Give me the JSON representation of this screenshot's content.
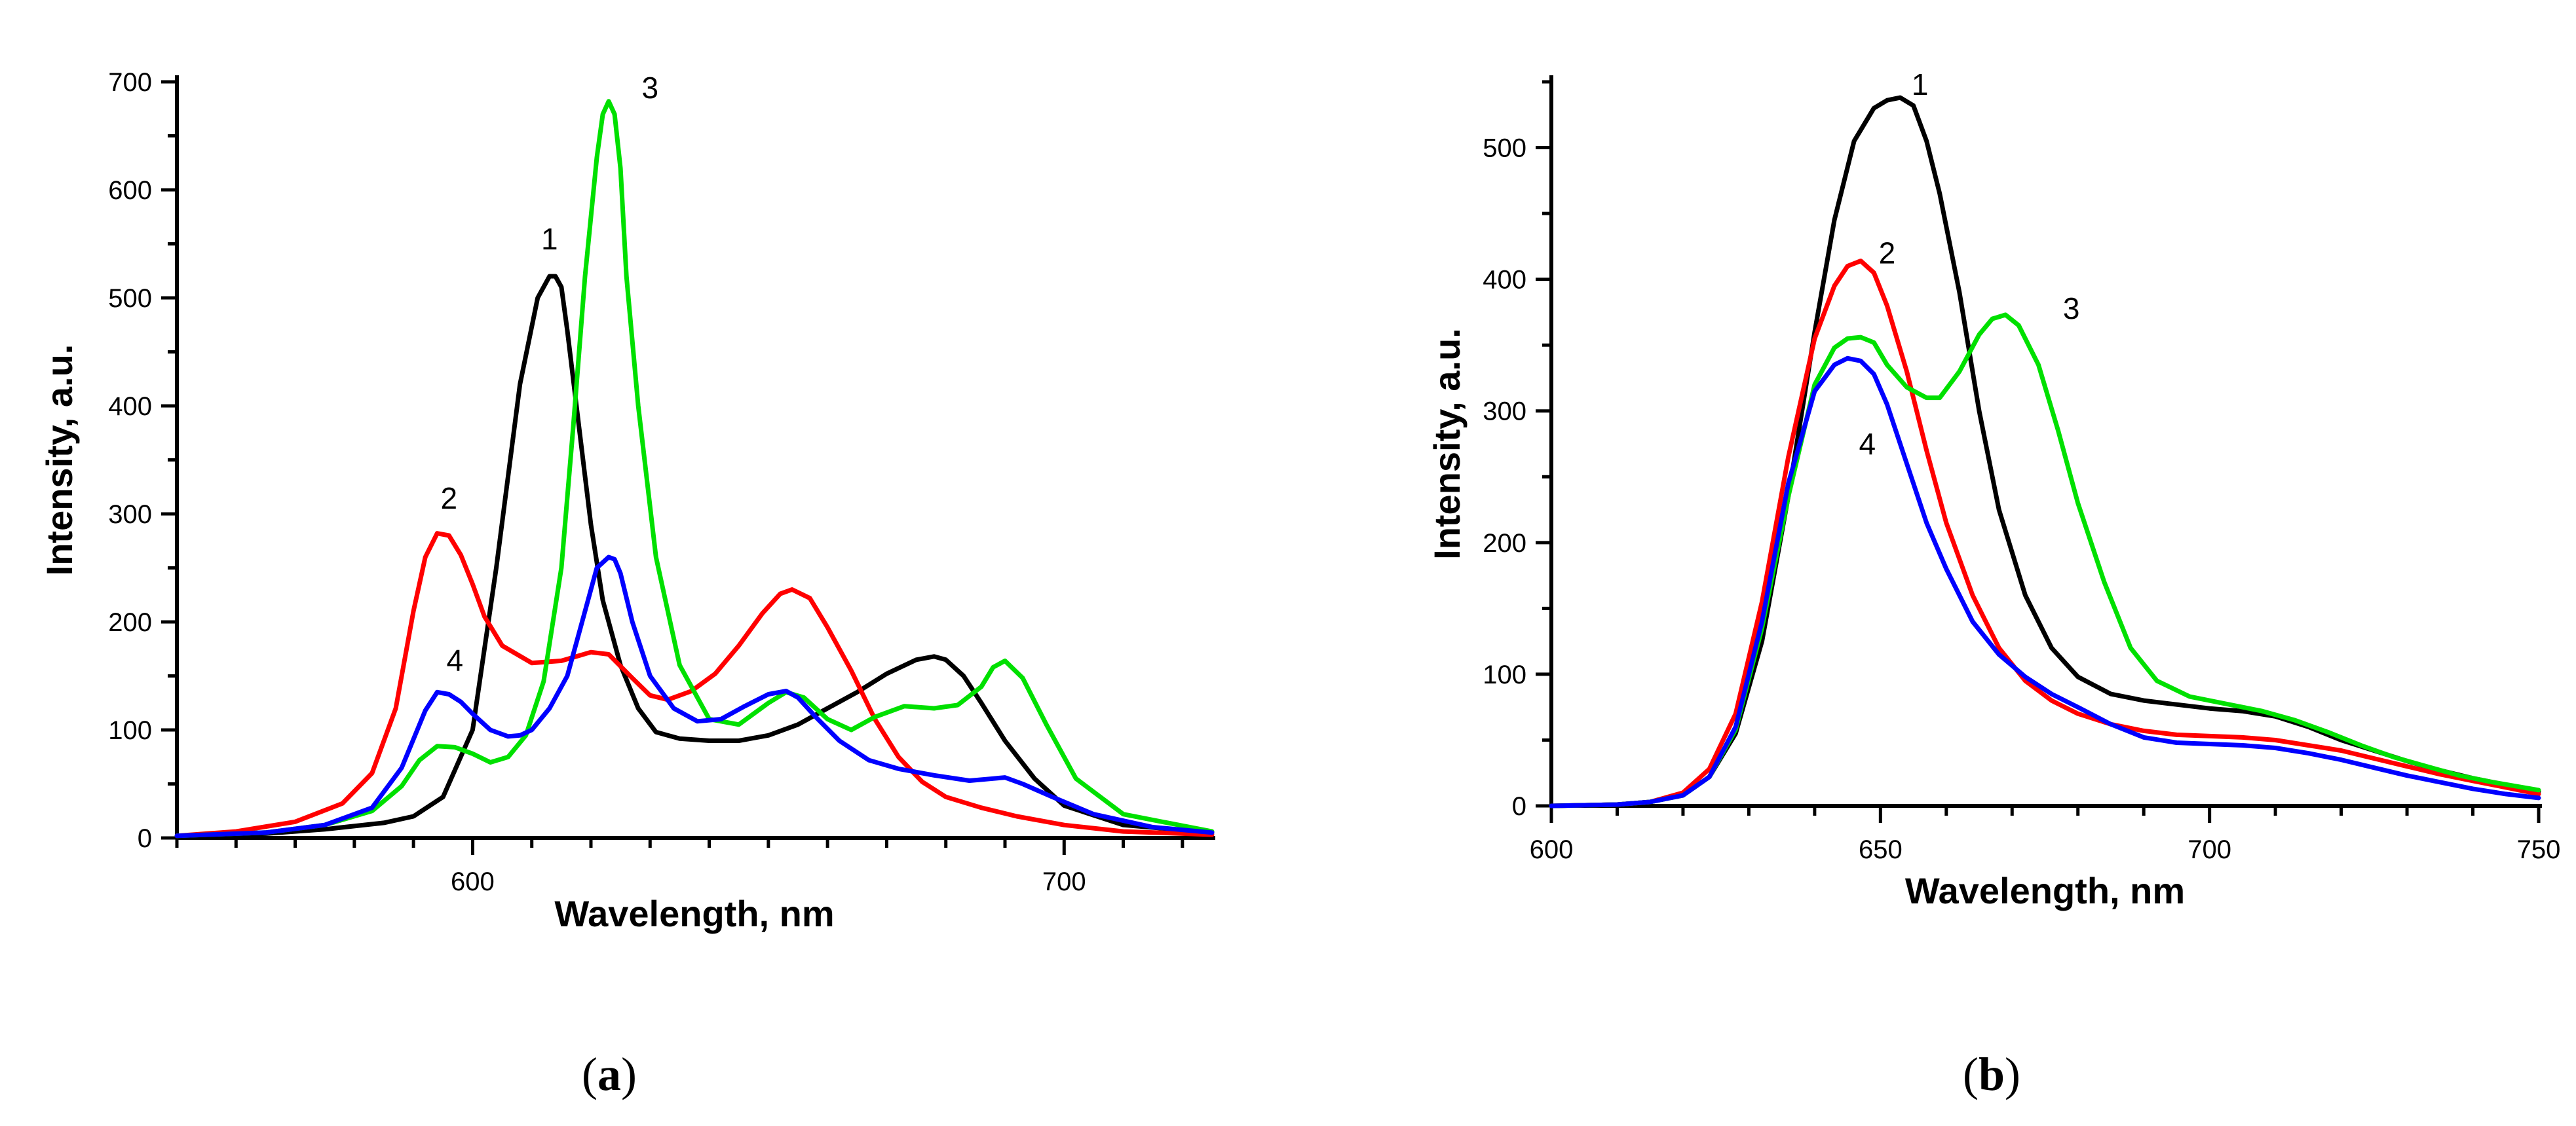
{
  "chart_data": [
    {
      "type": "line",
      "panel_label": "a",
      "xlabel": "Wavelength, nm",
      "ylabel": "Intensity, a.u.",
      "xlim": [
        550,
        725
      ],
      "ylim": [
        0,
        700
      ],
      "x_ticks": [
        600,
        700
      ],
      "y_ticks": [
        0,
        100,
        200,
        300,
        400,
        500,
        600,
        700
      ],
      "series": [
        {
          "name": "1",
          "color": "#000000",
          "x": [
            550,
            565,
            575,
            585,
            590,
            595,
            600,
            604,
            608,
            611,
            613,
            614,
            615,
            616,
            618,
            620,
            622,
            625,
            628,
            631,
            635,
            640,
            645,
            650,
            655,
            660,
            665,
            670,
            675,
            678,
            680,
            683,
            686,
            690,
            695,
            700,
            710,
            725
          ],
          "y": [
            2,
            4,
            8,
            14,
            20,
            38,
            100,
            250,
            420,
            500,
            520,
            520,
            510,
            470,
            380,
            290,
            220,
            160,
            120,
            98,
            92,
            90,
            90,
            95,
            105,
            120,
            135,
            152,
            165,
            168,
            165,
            150,
            125,
            90,
            55,
            30,
            12,
            5
          ]
        },
        {
          "name": "2",
          "color": "#ff0000",
          "x": [
            550,
            560,
            570,
            578,
            583,
            587,
            590,
            592,
            594,
            596,
            598,
            600,
            602,
            605,
            610,
            615,
            620,
            623,
            627,
            630,
            633,
            637,
            641,
            645,
            649,
            652,
            654,
            657,
            660,
            664,
            668,
            672,
            676,
            680,
            686,
            692,
            700,
            710,
            725
          ],
          "y": [
            2,
            6,
            15,
            32,
            60,
            120,
            210,
            260,
            282,
            280,
            262,
            235,
            205,
            178,
            162,
            164,
            172,
            170,
            148,
            132,
            128,
            136,
            152,
            178,
            208,
            226,
            230,
            222,
            195,
            155,
            110,
            75,
            52,
            38,
            28,
            20,
            12,
            6,
            3
          ]
        },
        {
          "name": "3",
          "color": "#00e000",
          "x": [
            550,
            565,
            575,
            583,
            588,
            591,
            594,
            597,
            600,
            603,
            606,
            609,
            612,
            615,
            617,
            619,
            621,
            622,
            623,
            624,
            625,
            626,
            628,
            631,
            635,
            640,
            645,
            650,
            653,
            656,
            660,
            664,
            668,
            673,
            678,
            682,
            686,
            688,
            690,
            693,
            697,
            702,
            710,
            725
          ],
          "y": [
            2,
            5,
            12,
            25,
            48,
            72,
            85,
            84,
            78,
            70,
            75,
            95,
            145,
            250,
            380,
            520,
            630,
            670,
            682,
            670,
            620,
            520,
            400,
            260,
            160,
            110,
            105,
            125,
            135,
            130,
            110,
            100,
            112,
            122,
            120,
            123,
            140,
            158,
            164,
            148,
            105,
            55,
            22,
            6
          ]
        },
        {
          "name": "4",
          "color": "#0000ff",
          "x": [
            550,
            565,
            575,
            583,
            588,
            592,
            594,
            596,
            598,
            600,
            603,
            606,
            608,
            610,
            613,
            616,
            619,
            621,
            623,
            624,
            625,
            627,
            630,
            634,
            638,
            642,
            646,
            650,
            653,
            655,
            658,
            662,
            667,
            672,
            678,
            684,
            688,
            690,
            693,
            698,
            705,
            715,
            725
          ],
          "y": [
            2,
            5,
            12,
            28,
            65,
            118,
            135,
            133,
            126,
            115,
            100,
            94,
            95,
            100,
            120,
            150,
            210,
            250,
            260,
            258,
            245,
            200,
            150,
            120,
            108,
            110,
            122,
            133,
            136,
            130,
            112,
            90,
            72,
            64,
            58,
            53,
            55,
            56,
            50,
            38,
            22,
            10,
            5
          ]
        }
      ],
      "curve_labels": [
        {
          "text": "1",
          "x": 613,
          "y": 545
        },
        {
          "text": "2",
          "x": 596,
          "y": 305
        },
        {
          "text": "3",
          "x": 630,
          "y": 685
        },
        {
          "text": "4",
          "x": 597,
          "y": 155
        }
      ]
    },
    {
      "type": "line",
      "panel_label": "b",
      "xlabel": "Wavelength, nm",
      "ylabel": "Intensity, a.u.",
      "xlim": [
        600,
        750
      ],
      "ylim": [
        0,
        550
      ],
      "x_ticks": [
        600,
        650,
        700,
        750
      ],
      "y_ticks": [
        0,
        100,
        200,
        300,
        400,
        500
      ],
      "series": [
        {
          "name": "1",
          "color": "#000000",
          "x": [
            600,
            610,
            615,
            620,
            624,
            628,
            632,
            636,
            640,
            643,
            646,
            649,
            651,
            653,
            655,
            657,
            659,
            662,
            665,
            668,
            672,
            676,
            680,
            685,
            690,
            695,
            700,
            705,
            710,
            715,
            720,
            725,
            730,
            735,
            740,
            745,
            750
          ],
          "y": [
            0,
            1,
            3,
            8,
            22,
            55,
            125,
            235,
            360,
            445,
            505,
            530,
            536,
            538,
            532,
            505,
            465,
            390,
            300,
            225,
            160,
            120,
            98,
            85,
            80,
            77,
            74,
            72,
            68,
            60,
            50,
            42,
            34,
            27,
            21,
            16,
            11
          ]
        },
        {
          "name": "2",
          "color": "#ff0000",
          "x": [
            600,
            610,
            615,
            620,
            624,
            628,
            632,
            636,
            640,
            643,
            645,
            647,
            649,
            651,
            654,
            657,
            660,
            664,
            668,
            672,
            676,
            680,
            685,
            690,
            695,
            700,
            705,
            710,
            715,
            720,
            725,
            730,
            735,
            740,
            745,
            750
          ],
          "y": [
            0,
            1,
            3,
            10,
            28,
            70,
            155,
            265,
            355,
            395,
            410,
            414,
            405,
            380,
            330,
            270,
            215,
            160,
            120,
            95,
            80,
            70,
            62,
            57,
            54,
            53,
            52,
            50,
            46,
            42,
            36,
            30,
            24,
            19,
            14,
            9
          ]
        },
        {
          "name": "3",
          "color": "#00e000",
          "x": [
            600,
            610,
            615,
            620,
            624,
            628,
            632,
            636,
            640,
            643,
            645,
            647,
            649,
            651,
            654,
            657,
            659,
            662,
            665,
            667,
            669,
            671,
            674,
            677,
            680,
            684,
            688,
            692,
            697,
            703,
            708,
            713,
            718,
            723,
            728,
            733,
            738,
            743,
            750
          ],
          "y": [
            0,
            1,
            3,
            8,
            22,
            58,
            135,
            235,
            320,
            348,
            355,
            356,
            352,
            335,
            318,
            310,
            310,
            330,
            358,
            370,
            373,
            365,
            335,
            285,
            230,
            170,
            120,
            95,
            83,
            77,
            72,
            65,
            56,
            46,
            37,
            30,
            23,
            18,
            12
          ]
        },
        {
          "name": "4",
          "color": "#0000ff",
          "x": [
            600,
            610,
            615,
            620,
            624,
            628,
            632,
            636,
            640,
            643,
            645,
            647,
            649,
            651,
            654,
            657,
            660,
            664,
            668,
            672,
            676,
            680,
            685,
            690,
            695,
            700,
            705,
            710,
            715,
            720,
            725,
            730,
            735,
            740,
            745,
            750
          ],
          "y": [
            0,
            1,
            3,
            8,
            22,
            60,
            140,
            245,
            315,
            335,
            340,
            338,
            328,
            305,
            260,
            215,
            180,
            140,
            115,
            98,
            85,
            75,
            62,
            52,
            48,
            47,
            46,
            44,
            40,
            35,
            29,
            23,
            18,
            13,
            9,
            6
          ]
        }
      ],
      "curve_labels": [
        {
          "text": "1",
          "x": 656,
          "y": 540
        },
        {
          "text": "2",
          "x": 651,
          "y": 412
        },
        {
          "text": "3",
          "x": 679,
          "y": 370
        },
        {
          "text": "4",
          "x": 648,
          "y": 267
        }
      ]
    }
  ]
}
